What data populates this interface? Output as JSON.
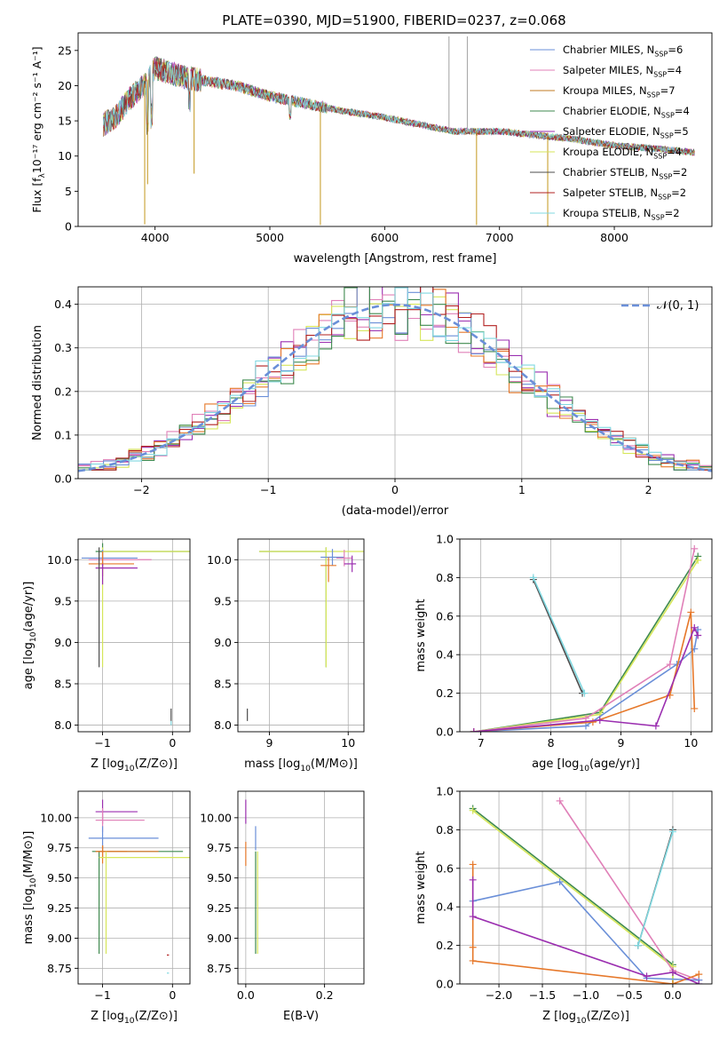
{
  "page_title": "PLATE=0390, MJD=51900, FIBERID=0237, z=0.068",
  "chart_data": [
    {
      "id": "spectrum",
      "type": "line",
      "title": "PLATE=0390, MJD=51900, FIBERID=0237, z=0.068",
      "xlabel": "wavelength [Angstrom, rest frame]",
      "ylabel": "Flux [f_λ 10^-17 erg cm^-2 s^-1 A^-1]",
      "xlim": [
        3330,
        8850
      ],
      "ylim": [
        0,
        27.5
      ],
      "xticks": [
        4000,
        5000,
        6000,
        7000,
        8000
      ],
      "yticks": [
        0,
        5,
        10,
        15,
        20,
        25
      ],
      "grid": false,
      "legend_position": "top-right",
      "continuum_x": [
        3550,
        3650,
        3800,
        3900,
        4000,
        4100,
        4300,
        4500,
        4700,
        5000,
        5300,
        5600,
        6000,
        6300,
        6600,
        6800,
        7000,
        7300,
        7600,
        8000,
        8400,
        8700
      ],
      "continuum_y": [
        14.5,
        15.5,
        18.5,
        20.0,
        22.5,
        22.0,
        21.0,
        20.5,
        20.0,
        18.5,
        17.5,
        16.5,
        15.5,
        14.5,
        13.5,
        13.5,
        13.5,
        13.0,
        12.5,
        11.5,
        11.0,
        10.5
      ],
      "spikes": [
        {
          "x": 3910,
          "y": 0.3
        },
        {
          "x": 3935,
          "y": 6.0
        },
        {
          "x": 4340,
          "y": 7.5
        },
        {
          "x": 5440,
          "y": 0.2
        },
        {
          "x": 6560,
          "y": 27.0
        },
        {
          "x": 6800,
          "y": 0.2
        },
        {
          "x": 6720,
          "y": 27.0
        },
        {
          "x": 7420,
          "y": 0.0
        }
      ],
      "series": [
        {
          "name": "Chabrier MILES, N_SSP=6",
          "label_main": "Chabrier MILES, N",
          "label_sub": "SSP",
          "label_tail": "=6",
          "color": "#6a8fd8"
        },
        {
          "name": "Salpeter MILES, N_SSP=4",
          "label_main": "Salpeter MILES, N",
          "label_sub": "SSP",
          "label_tail": "=4",
          "color": "#e080b8"
        },
        {
          "name": "Kroupa MILES, N_SSP=7",
          "label_main": "Kroupa MILES, N",
          "label_sub": "SSP",
          "label_tail": "=7",
          "color": "#c07a20"
        },
        {
          "name": "Chabrier ELODIE, N_SSP=4",
          "label_main": "Chabrier ELODIE, N",
          "label_sub": "SSP",
          "label_tail": "=4",
          "color": "#3f8a4f"
        },
        {
          "name": "Salpeter ELODIE, N_SSP=5",
          "label_main": "Salpeter ELODIE, N",
          "label_sub": "SSP",
          "label_tail": "=5",
          "color": "#9b2fb0"
        },
        {
          "name": "Kroupa ELODIE, N_SSP=4",
          "label_main": "Kroupa ELODIE, N",
          "label_sub": "SSP",
          "label_tail": "=4",
          "color": "#d6e65a"
        },
        {
          "name": "Chabrier STELIB, N_SSP=2",
          "label_main": "Chabrier STELIB, N",
          "label_sub": "SSP",
          "label_tail": "=2",
          "color": "#4d4d4d"
        },
        {
          "name": "Salpeter STELIB, N_SSP=2",
          "label_main": "Salpeter STELIB, N",
          "label_sub": "SSP",
          "label_tail": "=2",
          "color": "#b22020"
        },
        {
          "name": "Kroupa STELIB, N_SSP=2",
          "label_main": "Kroupa STELIB, N",
          "label_sub": "SSP",
          "label_tail": "=2",
          "color": "#80d8e0"
        }
      ]
    },
    {
      "id": "residuals",
      "type": "line",
      "xlabel": "(data-model)/error",
      "ylabel": "Normed distribution",
      "xlim": [
        -2.5,
        2.5
      ],
      "ylim": [
        0,
        0.44
      ],
      "xticks": [
        -2,
        -1,
        0,
        1,
        2
      ],
      "yticks": [
        0.0,
        0.1,
        0.2,
        0.3,
        0.4
      ],
      "grid": true,
      "legend_position": "top-right",
      "reference_curve": {
        "name": "N(0,1)",
        "label": "𝒩(0, 1)",
        "color": "#6a8fd8",
        "mean": 0,
        "sigma": 1
      },
      "histogram_bin_width": 0.1,
      "histogram_series": [
        {
          "color": "#9b2fb0"
        },
        {
          "color": "#e080b8"
        },
        {
          "color": "#d6e65a"
        },
        {
          "color": "#e6782a"
        },
        {
          "color": "#6a8fd8"
        },
        {
          "color": "#3f8a4f"
        },
        {
          "color": "#b22020"
        },
        {
          "color": "#80d8e0"
        }
      ]
    },
    {
      "id": "age-vs-Z",
      "type": "scatter",
      "xlabel": "Z [log10(Z/Z⊙)]",
      "xlabel_main": "Z [log",
      "xlabel_sub": "10",
      "xlabel_tail": "(Z/Z⊙)]",
      "ylabel": "age [log10(age/yr)]",
      "ylabel_main": "age  [log",
      "ylabel_sub": "10",
      "ylabel_tail": "(age/yr)]",
      "xlim": [
        -1.35,
        0.25
      ],
      "ylim": [
        7.92,
        10.25
      ],
      "xticks": [
        -1,
        0
      ],
      "yticks": [
        8.0,
        8.5,
        9.0,
        9.5,
        10.0
      ],
      "grid": true,
      "points": [
        {
          "x": -1.0,
          "y": 10.1,
          "xerr": [
            0.1,
            1.3
          ],
          "yerr": [
            0.1,
            0.1
          ],
          "color": "#3f8a4f"
        },
        {
          "x": -1.0,
          "y": 10.1,
          "xerr": [
            0.0,
            1.3
          ],
          "yerr": [
            1.4,
            0.05
          ],
          "color": "#d6e65a"
        },
        {
          "x": -1.0,
          "y": 10.02,
          "xerr": [
            0.3,
            0.5
          ],
          "yerr": [
            0.1,
            0.1
          ],
          "color": "#6a8fd8"
        },
        {
          "x": -1.0,
          "y": 10.0,
          "xerr": [
            0.2,
            0.7
          ],
          "yerr": [
            0.1,
            0.1
          ],
          "color": "#e080b8"
        },
        {
          "x": -1.0,
          "y": 9.95,
          "xerr": [
            0.2,
            0.45
          ],
          "yerr": [
            0.15,
            0.15
          ],
          "color": "#e6782a"
        },
        {
          "x": -1.0,
          "y": 9.9,
          "xerr": [
            0.1,
            0.5
          ],
          "yerr": [
            0.2,
            0.05
          ],
          "color": "#9b2fb0"
        },
        {
          "x": -1.05,
          "y": 10.1,
          "xerr": [
            0.0,
            0.0
          ],
          "yerr": [
            1.4,
            0.05
          ],
          "color": "#4d4d4d"
        },
        {
          "x": -0.02,
          "y": 8.05,
          "xerr": [
            0.0,
            0.0
          ],
          "yerr": [
            0.0,
            0.15
          ],
          "color": "#4d4d4d"
        },
        {
          "x": -0.02,
          "y": 8.0,
          "xerr": [
            0.0,
            0.0
          ],
          "yerr": [
            0.0,
            0.05
          ],
          "color": "#80d8e0"
        }
      ]
    },
    {
      "id": "age-vs-mass",
      "type": "scatter",
      "xlabel": "mass [log10(M/M⊙)]",
      "xlabel_main": "mass [log",
      "xlabel_sub": "10",
      "xlabel_tail": "(M/M⊙)]",
      "xlim": [
        8.6,
        10.2
      ],
      "ylim": [
        7.92,
        10.25
      ],
      "xticks": [
        9,
        10
      ],
      "yticks": [
        8.0,
        8.5,
        9.0,
        9.5,
        10.0
      ],
      "grid": true,
      "points": [
        {
          "x": 9.72,
          "y": 10.1,
          "xerr": [
            0.85,
            0.0
          ],
          "yerr": [
            1.4,
            0.05
          ],
          "color": "#3f8a4f"
        },
        {
          "x": 9.72,
          "y": 10.1,
          "xerr": [
            0.85,
            0.6
          ],
          "yerr": [
            1.4,
            0.05
          ],
          "color": "#d6e65a"
        },
        {
          "x": 9.8,
          "y": 10.03,
          "xerr": [
            0.15,
            0.15
          ],
          "yerr": [
            0.1,
            0.1
          ],
          "color": "#6a8fd8"
        },
        {
          "x": 9.95,
          "y": 10.02,
          "xerr": [
            0.1,
            0.1
          ],
          "yerr": [
            0.1,
            0.1
          ],
          "color": "#e080b8"
        },
        {
          "x": 9.75,
          "y": 9.93,
          "xerr": [
            0.1,
            0.1
          ],
          "yerr": [
            0.2,
            0.1
          ],
          "color": "#e6782a"
        },
        {
          "x": 10.05,
          "y": 9.95,
          "xerr": [
            0.1,
            0.05
          ],
          "yerr": [
            0.1,
            0.1
          ],
          "color": "#9b2fb0"
        },
        {
          "x": 8.72,
          "y": 8.05,
          "xerr": [
            0.0,
            0.0
          ],
          "yerr": [
            0.0,
            0.15
          ],
          "color": "#4d4d4d"
        }
      ]
    },
    {
      "id": "mass-weight-vs-age",
      "type": "line",
      "xlabel": "age [log10(age/yr)]",
      "xlabel_main": "age  [log",
      "xlabel_sub": "10",
      "xlabel_tail": "(age/yr)]",
      "ylabel": "mass weight",
      "xlim": [
        6.7,
        10.3
      ],
      "ylim": [
        0.0,
        1.0
      ],
      "xticks": [
        7,
        8,
        9,
        10
      ],
      "yticks": [
        0.0,
        0.2,
        0.4,
        0.6,
        0.8,
        1.0
      ],
      "grid": true,
      "series": [
        {
          "color": "#3f8a4f",
          "x": [
            6.9,
            8.7,
            10.1
          ],
          "y": [
            0.0,
            0.1,
            0.91
          ]
        },
        {
          "color": "#d6e65a",
          "x": [
            6.9,
            8.7,
            10.1
          ],
          "y": [
            0.0,
            0.09,
            0.89
          ]
        },
        {
          "color": "#e080b8",
          "x": [
            6.9,
            8.5,
            9.7,
            10.05
          ],
          "y": [
            0.0,
            0.07,
            0.35,
            0.95
          ]
        },
        {
          "color": "#6a8fd8",
          "x": [
            6.9,
            8.5,
            9.8,
            10.05,
            10.1
          ],
          "y": [
            0.0,
            0.03,
            0.35,
            0.43,
            0.53
          ]
        },
        {
          "color": "#e6782a",
          "x": [
            6.9,
            8.6,
            9.7,
            10.0,
            10.05
          ],
          "y": [
            0.0,
            0.05,
            0.19,
            0.62,
            0.12
          ]
        },
        {
          "color": "#9b2fb0",
          "x": [
            6.9,
            8.7,
            9.5,
            10.05,
            10.1
          ],
          "y": [
            0.0,
            0.06,
            0.03,
            0.54,
            0.5
          ]
        },
        {
          "color": "#4d4d4d",
          "x": [
            7.75,
            8.45
          ],
          "y": [
            0.79,
            0.2
          ]
        },
        {
          "color": "#80d8e0",
          "x": [
            7.75,
            8.48
          ],
          "y": [
            0.8,
            0.2
          ]
        }
      ]
    },
    {
      "id": "mass-vs-Z",
      "type": "scatter",
      "xlabel": "Z [log10(Z/Z⊙)]",
      "xlabel_main": "Z [log",
      "xlabel_sub": "10",
      "xlabel_tail": "(Z/Z⊙)]",
      "ylabel": "mass [log10(M/M⊙)]",
      "ylabel_main": "mass [log",
      "ylabel_sub": "10",
      "ylabel_tail": "(M/M⊙)]",
      "xlim": [
        -1.35,
        0.25
      ],
      "ylim": [
        8.62,
        10.22
      ],
      "xticks": [
        -1,
        0
      ],
      "yticks": [
        8.75,
        9.0,
        9.25,
        9.5,
        9.75,
        10.0
      ],
      "grid": true,
      "points": [
        {
          "x": -1.0,
          "y": 10.05,
          "xerr": [
            0.1,
            0.5
          ],
          "yerr": [
            0.1,
            0.1
          ],
          "color": "#9b2fb0"
        },
        {
          "x": -1.0,
          "y": 9.98,
          "xerr": [
            0.1,
            0.6
          ],
          "yerr": [
            0.1,
            0.1
          ],
          "color": "#e080b8"
        },
        {
          "x": -1.0,
          "y": 9.83,
          "xerr": [
            0.2,
            0.8
          ],
          "yerr": [
            0.1,
            0.1
          ],
          "color": "#6a8fd8"
        },
        {
          "x": -1.05,
          "y": 9.72,
          "xerr": [
            0.1,
            1.2
          ],
          "yerr": [
            0.85,
            0.0
          ],
          "color": "#3f8a4f"
        },
        {
          "x": -1.0,
          "y": 9.72,
          "xerr": [
            0.1,
            0.35
          ],
          "yerr": [
            0.05,
            0.05
          ],
          "color": "#c07a20"
        },
        {
          "x": -1.0,
          "y": 9.72,
          "xerr": [
            0.1,
            0.8
          ],
          "yerr": [
            0.1,
            0.05
          ],
          "color": "#e6782a"
        },
        {
          "x": -0.95,
          "y": 9.67,
          "xerr": [
            0.1,
            1.2
          ],
          "yerr": [
            0.8,
            0.05
          ],
          "color": "#d6e65a"
        },
        {
          "x": -0.05,
          "y": 8.86,
          "xerr": [
            0.03,
            0.0
          ],
          "yerr": [
            0.0,
            0.0
          ],
          "color": "#b22020"
        },
        {
          "x": -0.05,
          "y": 8.71,
          "xerr": [
            0.03,
            0.0
          ],
          "yerr": [
            0.0,
            0.0
          ],
          "color": "#80d8e0"
        }
      ]
    },
    {
      "id": "mass-vs-ebv",
      "type": "scatter",
      "xlabel": "E(B-V)",
      "xlim": [
        -0.02,
        0.3
      ],
      "ylim": [
        8.62,
        10.22
      ],
      "xticks": [
        0.0,
        0.2
      ],
      "yticks": [
        8.75,
        9.0,
        9.25,
        9.5,
        9.75,
        10.0
      ],
      "grid": true,
      "points": [
        {
          "x": 0.0,
          "y": 10.05,
          "xerr": [
            0.0,
            0.0
          ],
          "yerr": [
            0.1,
            0.1
          ],
          "color": "#9b2fb0"
        },
        {
          "x": 0.0,
          "y": 9.7,
          "xerr": [
            0.0,
            0.0
          ],
          "yerr": [
            0.1,
            0.1
          ],
          "color": "#e6782a"
        },
        {
          "x": 0.025,
          "y": 9.83,
          "xerr": [
            0.0,
            0.0
          ],
          "yerr": [
            0.1,
            0.1
          ],
          "color": "#6a8fd8"
        },
        {
          "x": 0.025,
          "y": 9.72,
          "xerr": [
            0.0,
            0.0
          ],
          "yerr": [
            0.85,
            0.0
          ],
          "color": "#3f8a4f"
        },
        {
          "x": 0.03,
          "y": 9.67,
          "xerr": [
            0.0,
            0.0
          ],
          "yerr": [
            0.8,
            0.05
          ],
          "color": "#d6e65a"
        }
      ]
    },
    {
      "id": "mass-weight-vs-Z",
      "type": "line",
      "xlabel": "Z [log10(Z/Z⊙)]",
      "xlabel_main": "Z [log",
      "xlabel_sub": "10",
      "xlabel_tail": "(Z/Z⊙)]",
      "ylabel": "mass weight",
      "xlim": [
        -2.45,
        0.45
      ],
      "ylim": [
        0.0,
        1.0
      ],
      "xticks": [
        -2.0,
        -1.5,
        -1.0,
        -0.5,
        0.0
      ],
      "yticks": [
        0.0,
        0.2,
        0.4,
        0.6,
        0.8,
        1.0
      ],
      "grid": true,
      "series": [
        {
          "color": "#3f8a4f",
          "x": [
            -2.3,
            0.0,
            0.0
          ],
          "y": [
            0.91,
            0.1,
            0.0
          ]
        },
        {
          "color": "#d6e65a",
          "x": [
            -2.3,
            0.0,
            0.0
          ],
          "y": [
            0.9,
            0.09,
            0.0
          ]
        },
        {
          "color": "#e080b8",
          "x": [
            -1.3,
            0.0,
            0.3
          ],
          "y": [
            0.95,
            0.07,
            0.02
          ]
        },
        {
          "color": "#6a8fd8",
          "x": [
            -2.3,
            -1.3,
            -0.3,
            0.3
          ],
          "y": [
            0.43,
            0.53,
            0.03,
            0.02
          ]
        },
        {
          "color": "#e6782a",
          "x": [
            -2.3,
            -2.3,
            -2.3,
            0.0,
            0.3
          ],
          "y": [
            0.62,
            0.19,
            0.12,
            0.0,
            0.05
          ]
        },
        {
          "color": "#9b2fb0",
          "x": [
            -2.3,
            -2.3,
            -0.3,
            0.0,
            0.3
          ],
          "y": [
            0.54,
            0.35,
            0.04,
            0.06,
            0.0
          ]
        },
        {
          "color": "#4d4d4d",
          "x": [
            -0.4,
            0.0
          ],
          "y": [
            0.2,
            0.8
          ]
        },
        {
          "color": "#80d8e0",
          "x": [
            -0.4,
            0.0
          ],
          "y": [
            0.2,
            0.79
          ]
        }
      ]
    }
  ]
}
